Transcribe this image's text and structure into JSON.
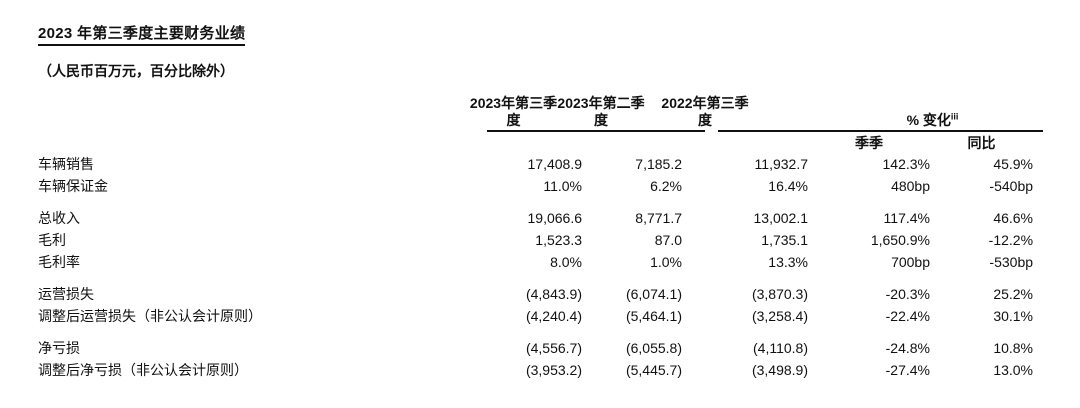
{
  "document": {
    "title": "2023 年第三季度主要财务业绩",
    "subtitle": "（人民币百万元，百分比除外）"
  },
  "colors": {
    "text": "#111111",
    "rule": "#111111",
    "background": "#ffffff"
  },
  "table": {
    "headers": {
      "q3_2023_line1": "2023年第三季",
      "q3_2023_line2": "度",
      "q2_2023_line1": "2023年第二季",
      "q2_2023_line2": "度",
      "q3_2022_line1": "2022年第三季",
      "q3_2022_line2": "度",
      "pct_change": "% 变化",
      "pct_change_superscript": "iii",
      "qoq": "季季",
      "yoy": "同比"
    },
    "rows": [
      {
        "label": "车辆销售",
        "q3_2023": "17,408.9",
        "q2_2023": "7,185.2",
        "q3_2022": "11,932.7",
        "qoq": "142.3%",
        "yoy": "45.9%"
      },
      {
        "label": "车辆保证金",
        "q3_2023": "11.0%",
        "q2_2023": "6.2%",
        "q3_2022": "16.4%",
        "qoq": "480bp",
        "yoy": "-540bp"
      },
      {
        "label": "总收入",
        "q3_2023": "19,066.6",
        "q2_2023": "8,771.7",
        "q3_2022": "13,002.1",
        "qoq": "117.4%",
        "yoy": "46.6%"
      },
      {
        "label": "毛利",
        "q3_2023": "1,523.3",
        "q2_2023": "87.0",
        "q3_2022": "1,735.1",
        "qoq": "1,650.9%",
        "yoy": "-12.2%"
      },
      {
        "label": "毛利率",
        "q3_2023": "8.0%",
        "q2_2023": "1.0%",
        "q3_2022": "13.3%",
        "qoq": "700bp",
        "yoy": "-530bp"
      },
      {
        "label": "运营损失",
        "q3_2023": "(4,843.9)",
        "q2_2023": "(6,074.1)",
        "q3_2022": "(3,870.3)",
        "qoq": "-20.3%",
        "yoy": "25.2%"
      },
      {
        "label": "调整后运营损失（非公认会计原则）",
        "q3_2023": "(4,240.4)",
        "q2_2023": "(5,464.1)",
        "q3_2022": "(3,258.4)",
        "qoq": "-22.4%",
        "yoy": "30.1%"
      },
      {
        "label": "净亏损",
        "q3_2023": "(4,556.7)",
        "q2_2023": "(6,055.8)",
        "q3_2022": "(4,110.8)",
        "qoq": "-24.8%",
        "yoy": "10.8%"
      },
      {
        "label": "调整后净亏损（非公认会计原则）",
        "q3_2023": "(3,953.2)",
        "q2_2023": "(5,445.7)",
        "q3_2022": "(3,498.9)",
        "qoq": "-27.4%",
        "yoy": "13.0%"
      }
    ]
  }
}
